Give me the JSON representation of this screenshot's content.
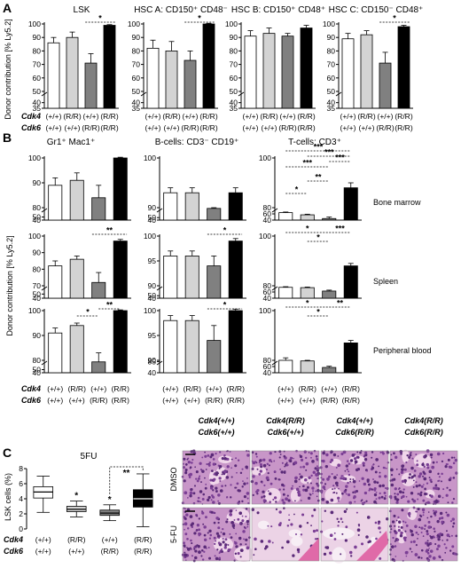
{
  "panels": [
    {
      "letter": "A"
    },
    {
      "letter": "B"
    },
    {
      "letter": "C"
    }
  ],
  "colors": {
    "wt": "#ffffff",
    "cdk4": "#d3d3d3",
    "cdk6": "#808080",
    "double": "#000000"
  },
  "genotype": {
    "cdk4_label": "Cdk4",
    "cdk6_label": "Cdk6",
    "cdk4": [
      "(+/+)",
      "(R/R)",
      "(+/+)",
      "(R/R)"
    ],
    "cdk6": [
      "(+/+)",
      "(+/+)",
      "(R/R)",
      "(R/R)"
    ]
  },
  "panel_a": {
    "ylabel": "Donor contribution [% Ly5.2]",
    "charts": [
      {
        "title": "LSK",
        "ylim": [
          35,
          100
        ],
        "yticks": [
          "100",
          "90",
          "80",
          "70",
          "60",
          "50",
          "40",
          "35"
        ],
        "values": [
          86,
          90,
          71,
          99
        ],
        "errors": [
          4,
          4,
          7,
          0.5
        ],
        "sig": [
          "*"
        ]
      },
      {
        "title": "HSC A: CD150⁺ CD48⁻",
        "ylim": [
          35,
          100
        ],
        "yticks": [
          "100",
          "90",
          "80",
          "70",
          "60",
          "50",
          "40",
          "35"
        ],
        "values": [
          82,
          80,
          73,
          100
        ],
        "errors": [
          6,
          7,
          7,
          0.5
        ],
        "sig": [
          "*"
        ]
      },
      {
        "title": "HSC B: CD150⁺ CD48⁺",
        "ylim": [
          35,
          100
        ],
        "yticks": [
          "100",
          "90",
          "80",
          "70",
          "60",
          "50",
          "40",
          "35"
        ],
        "values": [
          91,
          93,
          91,
          97
        ],
        "errors": [
          4,
          4,
          2,
          2
        ],
        "sig": []
      },
      {
        "title": "HSC C: CD150⁻ CD48⁺",
        "ylim": [
          35,
          100
        ],
        "yticks": [
          "100",
          "90",
          "80",
          "70",
          "60",
          "50",
          "40",
          "35"
        ],
        "values": [
          89,
          92,
          71,
          98
        ],
        "errors": [
          4,
          3,
          8,
          1
        ],
        "sig": [
          "*"
        ]
      }
    ]
  },
  "panel_b": {
    "ylabel": "Donor contribution [% Ly5.2]",
    "columns": [
      "Gr1⁺ Mac1⁺",
      "B-cells: CD3⁻ CD19⁺",
      "T-cells: CD3⁺"
    ],
    "rows": [
      "Bone marrow",
      "Spleen",
      "Peripheral blood"
    ],
    "charts": [
      {
        "row": 0,
        "col": 0,
        "ylim": [
          40,
          100
        ],
        "yticks": [
          "100",
          "90",
          "80",
          "50",
          "40"
        ],
        "values": [
          89,
          91,
          84,
          100
        ],
        "errors": [
          3,
          3,
          5,
          0.3
        ],
        "sig": []
      },
      {
        "row": 0,
        "col": 1,
        "ylim": [
          40,
          100
        ],
        "yticks": [
          "100",
          "90",
          "50",
          "40"
        ],
        "values": [
          93,
          93,
          87,
          93
        ],
        "errors": [
          1,
          1,
          3,
          1
        ],
        "sig": []
      },
      {
        "row": 0,
        "col": 2,
        "ylim": [
          40,
          100
        ],
        "yticks": [
          "100",
          "80",
          "60",
          "40"
        ],
        "values": [
          64,
          57,
          45,
          88
        ],
        "errors": [
          2,
          2,
          5,
          2
        ],
        "sig": [
          "***",
          "***",
          "***",
          "***",
          "**",
          "*"
        ]
      },
      {
        "row": 1,
        "col": 0,
        "ylim": [
          40,
          100
        ],
        "yticks": [
          "100",
          "90",
          "80",
          "70",
          "50",
          "40"
        ],
        "values": [
          82,
          86,
          72,
          97
        ],
        "errors": [
          3,
          2,
          6,
          1
        ],
        "sig": [
          "**"
        ]
      },
      {
        "row": 1,
        "col": 1,
        "ylim": [
          40,
          100
        ],
        "yticks": [
          "100",
          "95",
          "90",
          "50",
          "40"
        ],
        "values": [
          96,
          96,
          94,
          99
        ],
        "errors": [
          1,
          1,
          2,
          0.5
        ],
        "sig": [
          "*"
        ]
      },
      {
        "row": 1,
        "col": 2,
        "ylim": [
          40,
          100
        ],
        "yticks": [
          "100",
          "80",
          "60",
          "40"
        ],
        "values": [
          75,
          74,
          63,
          88
        ],
        "errors": [
          2,
          2,
          3,
          1
        ],
        "sig": [
          "*",
          "*",
          "***"
        ]
      },
      {
        "row": 2,
        "col": 0,
        "ylim": [
          40,
          100
        ],
        "yticks": [
          "100",
          "90",
          "80",
          "50",
          "40"
        ],
        "values": [
          91,
          94,
          75,
          100
        ],
        "errors": [
          2,
          1,
          8,
          0.3
        ],
        "sig": [
          "*",
          "**"
        ]
      },
      {
        "row": 2,
        "col": 1,
        "ylim": [
          40,
          100
        ],
        "yticks": [
          "100",
          "95",
          "90",
          "85",
          "40"
        ],
        "values": [
          98,
          98,
          94,
          100
        ],
        "errors": [
          1,
          1,
          3,
          0.3
        ],
        "sig": [
          "*"
        ]
      },
      {
        "row": 2,
        "col": 2,
        "ylim": [
          40,
          100
        ],
        "yticks": [
          "100",
          "80",
          "60",
          "40"
        ],
        "values": [
          80,
          78,
          57,
          87
        ],
        "errors": [
          1,
          2,
          4,
          1
        ],
        "sig": [
          "*",
          "*",
          "**"
        ]
      }
    ]
  },
  "panel_c": {
    "box_title": "5FU",
    "ylabel": "LSK cells (%)",
    "ylim": [
      0,
      8
    ],
    "yticks": [
      "8",
      "6",
      "4",
      "2",
      "0"
    ],
    "boxes": [
      {
        "min": 2.2,
        "q1": 4.1,
        "median": 4.9,
        "q3": 5.6,
        "max": 7.0,
        "color": "#ffffff"
      },
      {
        "min": 1.6,
        "q1": 2.3,
        "median": 2.6,
        "q3": 3.0,
        "max": 3.7,
        "color": "#d3d3d3"
      },
      {
        "min": 1.1,
        "q1": 1.8,
        "median": 2.1,
        "q3": 2.5,
        "max": 3.2,
        "color": "#808080"
      },
      {
        "min": 0.3,
        "q1": 2.9,
        "median": 4.0,
        "q3": 5.2,
        "max": 7.3,
        "color": "#000000"
      }
    ],
    "box_sig": [
      "*",
      "*",
      "**"
    ],
    "histology": {
      "columns": [
        {
          "cdk4": "Cdk4(+/+)",
          "cdk6": "Cdk6(+/+)"
        },
        {
          "cdk4": "Cdk4(R/R)",
          "cdk6": "Cdk6(+/+)"
        },
        {
          "cdk4": "Cdk4(+/+)",
          "cdk6": "Cdk6(R/R)"
        },
        {
          "cdk4": "Cdk4(R/R)",
          "cdk6": "Cdk6(R/R)"
        }
      ],
      "rows": [
        "DMSO",
        "5-FU"
      ]
    }
  }
}
